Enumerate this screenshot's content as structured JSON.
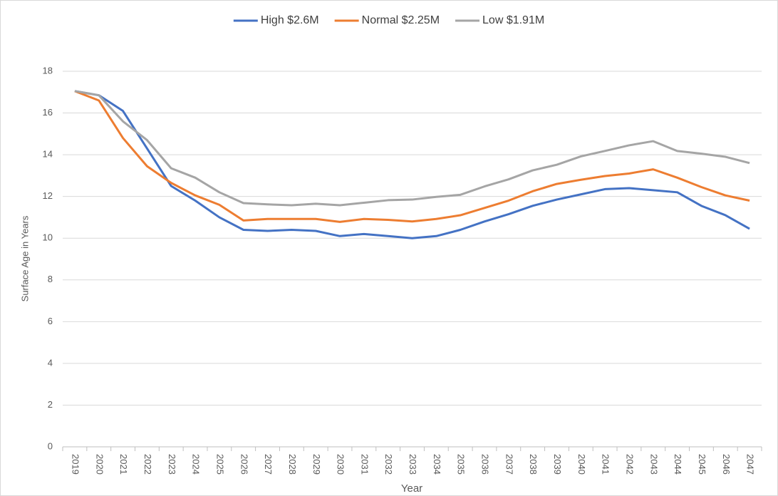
{
  "chart_data": {
    "type": "line",
    "categories": [
      "2019",
      "2020",
      "2021",
      "2022",
      "2023",
      "2024",
      "2025",
      "2026",
      "2027",
      "2028",
      "2029",
      "2030",
      "2031",
      "2032",
      "2033",
      "2034",
      "2035",
      "2036",
      "2037",
      "2038",
      "2039",
      "2040",
      "2041",
      "2042",
      "2043",
      "2044",
      "2045",
      "2046",
      "2047"
    ],
    "series": [
      {
        "name": "High $2.6M",
        "color": "#4472c4",
        "values": [
          17.05,
          16.85,
          16.1,
          14.3,
          12.5,
          11.8,
          11.0,
          10.4,
          10.35,
          10.4,
          10.35,
          10.1,
          10.2,
          10.1,
          10.0,
          10.1,
          10.4,
          10.8,
          11.15,
          11.55,
          11.85,
          12.1,
          12.35,
          12.4,
          12.3,
          12.2,
          11.55,
          11.1,
          10.45
        ]
      },
      {
        "name": "Normal $2.25M",
        "color": "#ed7d31",
        "values": [
          17.05,
          16.6,
          14.8,
          13.45,
          12.65,
          12.05,
          11.6,
          10.85,
          10.92,
          10.92,
          10.92,
          10.78,
          10.92,
          10.88,
          10.8,
          10.92,
          11.1,
          11.45,
          11.8,
          12.25,
          12.6,
          12.8,
          12.98,
          13.1,
          13.3,
          12.9,
          12.45,
          12.05,
          11.8
        ]
      },
      {
        "name": "Low $1.91M",
        "color": "#a5a5a5",
        "values": [
          17.05,
          16.85,
          15.6,
          14.7,
          13.35,
          12.9,
          12.2,
          11.68,
          11.62,
          11.58,
          11.65,
          11.58,
          11.7,
          11.82,
          11.85,
          11.98,
          12.08,
          12.48,
          12.82,
          13.25,
          13.52,
          13.92,
          14.18,
          14.45,
          14.65,
          14.18,
          14.05,
          13.9,
          13.6
        ]
      }
    ],
    "xlabel": "Year",
    "ylabel": "Surface Age in Years",
    "ylim": [
      0,
      18
    ],
    "yticks": [
      0,
      2,
      4,
      6,
      8,
      10,
      12,
      14,
      16,
      18
    ],
    "grid": true,
    "legend": "top"
  }
}
